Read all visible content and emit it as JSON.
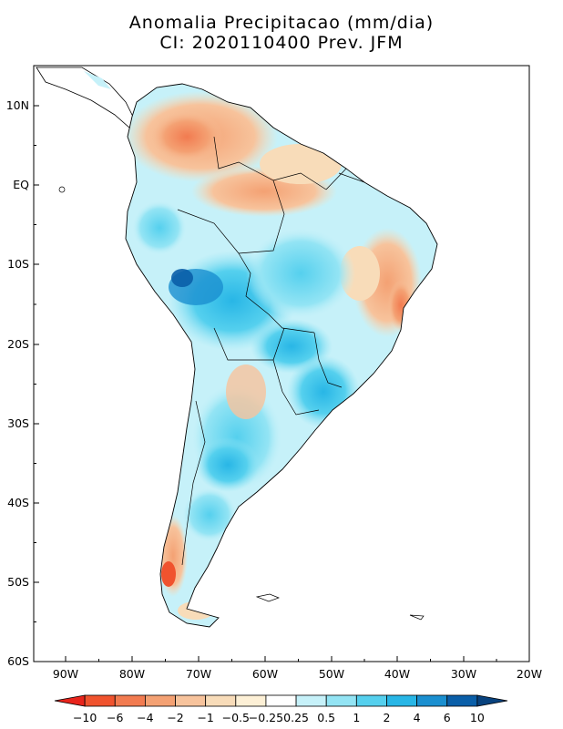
{
  "title": {
    "line1": "Anomalia Precipitacao (mm/dia)",
    "line2": "CI: 2020110400 Prev. JFM"
  },
  "map": {
    "region": "South America",
    "lat_labels": [
      "10N",
      "EQ",
      "10S",
      "20S",
      "30S",
      "40S",
      "50S",
      "60S"
    ],
    "lon_labels": [
      "90W",
      "80W",
      "70W",
      "60W",
      "50W",
      "40W",
      "30W",
      "20W"
    ]
  },
  "colorbar": {
    "labels": [
      "-10",
      "-6",
      "-4",
      "-2",
      "-1",
      "-0.5",
      "-0.25",
      "0.25",
      "0.5",
      "1",
      "2",
      "4",
      "6",
      "10"
    ],
    "colors": [
      "#e8241c",
      "#f0532e",
      "#f27b50",
      "#f4a173",
      "#f7c39c",
      "#f8dcb9",
      "#fdf0d6",
      "#ffffff",
      "#c6f1f9",
      "#93e4f4",
      "#55d0ee",
      "#28b6e6",
      "#1a8fd0",
      "#0a5ea8",
      "#08427e"
    ]
  }
}
